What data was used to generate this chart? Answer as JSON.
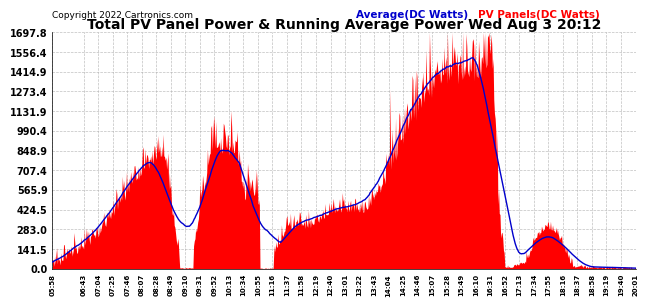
{
  "title": "Total PV Panel Power & Running Average Power Wed Aug 3 20:12",
  "copyright": "Copyright 2022 Cartronics.com",
  "legend_avg": "Average(DC Watts)",
  "legend_pv": "PV Panels(DC Watts)",
  "yticks": [
    0.0,
    141.5,
    283.0,
    424.5,
    565.9,
    707.4,
    848.9,
    990.4,
    1131.9,
    1273.4,
    1414.9,
    1556.4,
    1697.8
  ],
  "ymax": 1697.8,
  "ymin": 0.0,
  "bg_color": "#ffffff",
  "grid_color": "#b0b0b0",
  "fill_color": "#ff0000",
  "avg_line_color": "#0000cc",
  "xtick_labels": [
    "05:58",
    "06:43",
    "07:04",
    "07:25",
    "07:46",
    "08:07",
    "08:28",
    "08:49",
    "09:10",
    "09:31",
    "09:52",
    "10:13",
    "10:34",
    "10:55",
    "11:16",
    "11:37",
    "11:58",
    "12:19",
    "12:40",
    "13:01",
    "13:22",
    "13:43",
    "14:04",
    "14:25",
    "14:46",
    "15:07",
    "15:28",
    "15:49",
    "16:10",
    "16:31",
    "16:52",
    "17:13",
    "17:34",
    "17:55",
    "18:16",
    "18:37",
    "18:58",
    "19:19",
    "19:40",
    "20:01"
  ]
}
